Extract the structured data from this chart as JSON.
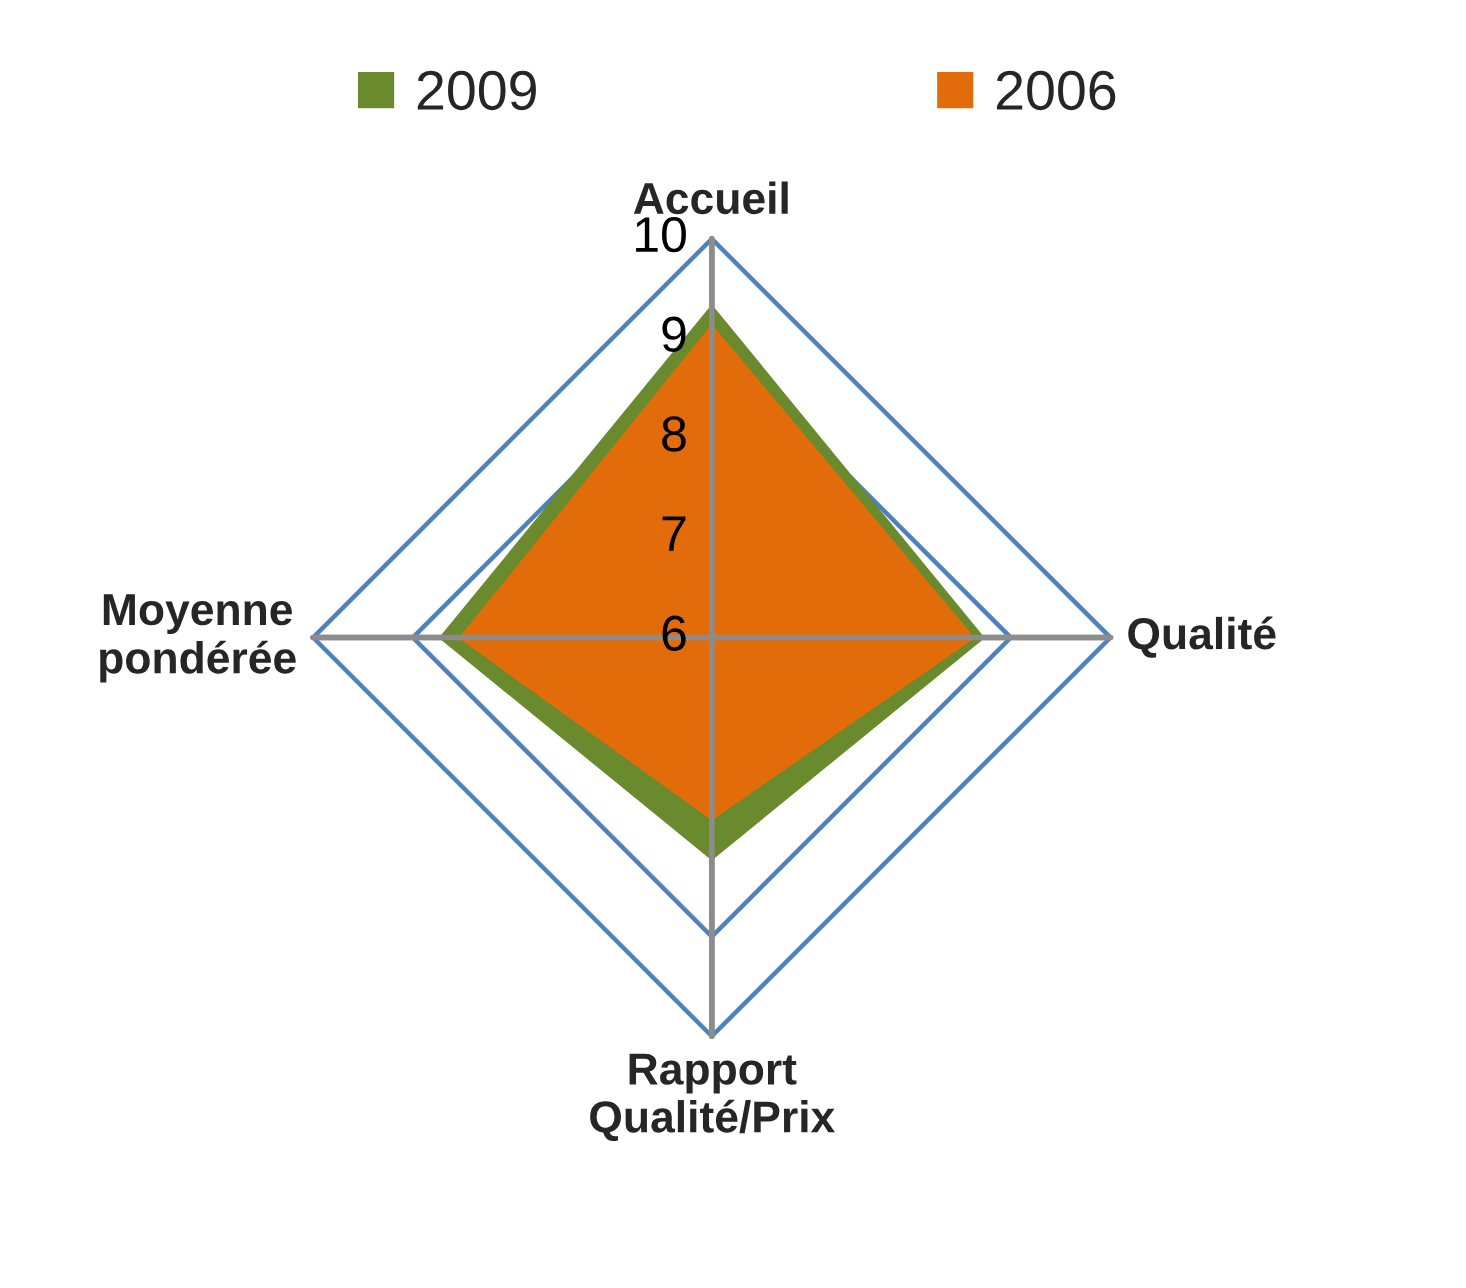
{
  "chart_data": {
    "type": "radar",
    "categories": [
      "Accueil",
      "Qualité",
      "Rapport\nQualité/Prix",
      "Moyenne\npondérée"
    ],
    "series": [
      {
        "name": "2009",
        "color": "#6a8a2e",
        "values": [
          9.3,
          8.7,
          8.2,
          8.7
        ]
      },
      {
        "name": "2006",
        "color": "#e36c0a",
        "values": [
          9.1,
          8.6,
          7.8,
          8.5
        ]
      }
    ],
    "ylim": [
      6,
      10
    ],
    "yticks": [
      6,
      7,
      8,
      9,
      10
    ],
    "legend": "top",
    "grid": true
  }
}
